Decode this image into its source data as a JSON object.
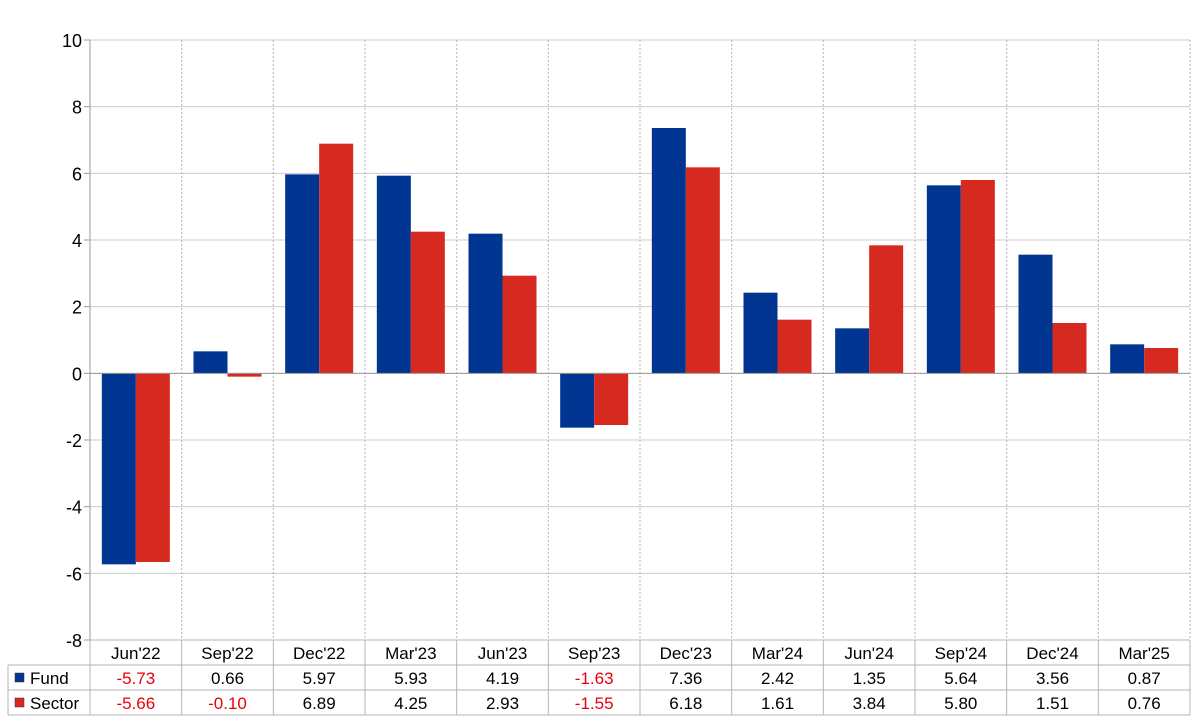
{
  "chart_data": {
    "type": "bar",
    "title": "",
    "xlabel": "",
    "ylabel": "",
    "ylim": [
      -8,
      10
    ],
    "y_ticks": [
      "10",
      "8",
      "6",
      "4",
      "2",
      "0",
      "-2",
      "-4",
      "-6",
      "-8"
    ],
    "grid": true,
    "legend": "data-table-left",
    "categories": [
      "Jun'22",
      "Sep'22",
      "Dec'22",
      "Mar'23",
      "Jun'23",
      "Sep'23",
      "Dec'23",
      "Mar'24",
      "Jun'24",
      "Sep'24",
      "Dec'24",
      "Mar'25"
    ],
    "series": [
      {
        "name": "Fund",
        "color": "#003591",
        "values": [
          -5.73,
          0.66,
          5.97,
          5.93,
          4.19,
          -1.63,
          7.36,
          2.42,
          1.35,
          5.64,
          3.56,
          0.87
        ],
        "labels": [
          "-5.73",
          "0.66",
          "5.97",
          "5.93",
          "4.19",
          "-1.63",
          "7.36",
          "2.42",
          "1.35",
          "5.64",
          "3.56",
          "0.87"
        ]
      },
      {
        "name": "Sector",
        "color": "#d62a20",
        "values": [
          -5.66,
          -0.1,
          6.89,
          4.25,
          2.93,
          -1.55,
          6.18,
          1.61,
          3.84,
          5.8,
          1.51,
          0.76
        ],
        "labels": [
          "-5.66",
          "-0.10",
          "6.89",
          "4.25",
          "2.93",
          "-1.55",
          "6.18",
          "1.61",
          "3.84",
          "5.80",
          "1.51",
          "0.76"
        ]
      }
    ],
    "negative_label_color": "#e8000b"
  }
}
